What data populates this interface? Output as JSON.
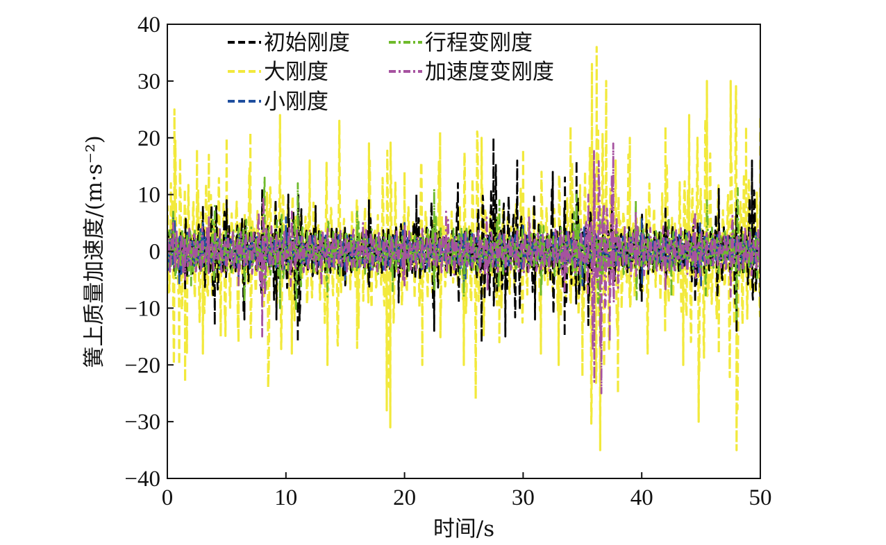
{
  "chart_data": {
    "type": "line",
    "title": "",
    "xlabel": "时间/s",
    "ylabel": "簧上质量加速度/(m·s⁻²)",
    "xlim": [
      0,
      50
    ],
    "ylim": [
      -40,
      40
    ],
    "xticks": [
      0,
      10,
      20,
      30,
      40,
      50
    ],
    "yticks": [
      -40,
      -30,
      -20,
      -10,
      0,
      10,
      20,
      30,
      40
    ],
    "grid": false,
    "legend_position": "top-left",
    "series": [
      {
        "name": "初始刚度",
        "color": "#000000",
        "dash": "dashed",
        "peaks": [
          {
            "x": 0.5,
            "y": 6
          },
          {
            "x": 1.5,
            "y": -7
          },
          {
            "x": 3.0,
            "y": 8
          },
          {
            "x": 4.0,
            "y": -13
          },
          {
            "x": 5.0,
            "y": 9
          },
          {
            "x": 6.5,
            "y": -12
          },
          {
            "x": 8.0,
            "y": 11
          },
          {
            "x": 9.2,
            "y": -12
          },
          {
            "x": 10.2,
            "y": 10
          },
          {
            "x": 11.0,
            "y": -16
          },
          {
            "x": 12.5,
            "y": 8
          },
          {
            "x": 15.0,
            "y": -6
          },
          {
            "x": 17.0,
            "y": 9
          },
          {
            "x": 19.5,
            "y": -9
          },
          {
            "x": 21.0,
            "y": 10
          },
          {
            "x": 22.5,
            "y": -14
          },
          {
            "x": 24.5,
            "y": 12
          },
          {
            "x": 26.5,
            "y": -16
          },
          {
            "x": 27.5,
            "y": 20
          },
          {
            "x": 28.5,
            "y": -15
          },
          {
            "x": 29.5,
            "y": 16
          },
          {
            "x": 31.0,
            "y": -12
          },
          {
            "x": 32.5,
            "y": 14
          },
          {
            "x": 33.5,
            "y": -15
          },
          {
            "x": 34.5,
            "y": 16
          },
          {
            "x": 35.5,
            "y": -13
          },
          {
            "x": 37.5,
            "y": 10
          },
          {
            "x": 40.0,
            "y": -9
          },
          {
            "x": 42.0,
            "y": 8
          },
          {
            "x": 44.5,
            "y": -9
          },
          {
            "x": 46.5,
            "y": 11
          },
          {
            "x": 48.0,
            "y": -14
          },
          {
            "x": 49.3,
            "y": 16
          },
          {
            "x": 50.0,
            "y": -8
          }
        ]
      },
      {
        "name": "大刚度",
        "color": "#f2e93c",
        "dash": "dashed",
        "peaks": [
          {
            "x": 0.3,
            "y": 12
          },
          {
            "x": 0.6,
            "y": 25
          },
          {
            "x": 1.0,
            "y": -20
          },
          {
            "x": 1.5,
            "y": -23
          },
          {
            "x": 2.5,
            "y": 18
          },
          {
            "x": 3.0,
            "y": -18
          },
          {
            "x": 3.5,
            "y": 17
          },
          {
            "x": 4.5,
            "y": -15
          },
          {
            "x": 5.0,
            "y": 20
          },
          {
            "x": 6.0,
            "y": -16
          },
          {
            "x": 7.0,
            "y": 21
          },
          {
            "x": 8.5,
            "y": -24
          },
          {
            "x": 9.5,
            "y": 24
          },
          {
            "x": 10.5,
            "y": -18
          },
          {
            "x": 12.0,
            "y": 16
          },
          {
            "x": 13.5,
            "y": -20
          },
          {
            "x": 14.5,
            "y": 23
          },
          {
            "x": 16.0,
            "y": -17
          },
          {
            "x": 17.0,
            "y": 19
          },
          {
            "x": 18.5,
            "y": -28
          },
          {
            "x": 18.8,
            "y": -31
          },
          {
            "x": 20.0,
            "y": 14
          },
          {
            "x": 21.5,
            "y": -20
          },
          {
            "x": 23.0,
            "y": 21
          },
          {
            "x": 25.0,
            "y": -20
          },
          {
            "x": 26.0,
            "y": -26
          },
          {
            "x": 26.5,
            "y": 20
          },
          {
            "x": 28.0,
            "y": -16
          },
          {
            "x": 30.0,
            "y": 18
          },
          {
            "x": 31.5,
            "y": -18
          },
          {
            "x": 33.0,
            "y": -20
          },
          {
            "x": 34.0,
            "y": 22
          },
          {
            "x": 35.0,
            "y": -22
          },
          {
            "x": 35.8,
            "y": 33
          },
          {
            "x": 36.2,
            "y": 36
          },
          {
            "x": 36.5,
            "y": -35
          },
          {
            "x": 37.0,
            "y": 30
          },
          {
            "x": 38.0,
            "y": -25
          },
          {
            "x": 39.0,
            "y": 20
          },
          {
            "x": 40.5,
            "y": -18
          },
          {
            "x": 42.0,
            "y": 22
          },
          {
            "x": 43.5,
            "y": -20
          },
          {
            "x": 44.0,
            "y": 24
          },
          {
            "x": 44.8,
            "y": -30
          },
          {
            "x": 45.5,
            "y": 30
          },
          {
            "x": 46.5,
            "y": -18
          },
          {
            "x": 47.5,
            "y": 30
          },
          {
            "x": 48.0,
            "y": -35
          },
          {
            "x": 48.8,
            "y": 22
          },
          {
            "x": 50.0,
            "y": 24
          }
        ]
      },
      {
        "name": "小刚度",
        "color": "#1f4e9e",
        "dash": "dashed",
        "peaks": [
          {
            "x": 0.5,
            "y": 7
          },
          {
            "x": 1.0,
            "y": -6
          },
          {
            "x": 3.0,
            "y": 5
          },
          {
            "x": 6.0,
            "y": -5
          },
          {
            "x": 10.0,
            "y": 6
          },
          {
            "x": 15.0,
            "y": -5
          },
          {
            "x": 20.0,
            "y": 5
          },
          {
            "x": 25.0,
            "y": -6
          },
          {
            "x": 30.0,
            "y": 5
          },
          {
            "x": 35.0,
            "y": -6
          },
          {
            "x": 40.0,
            "y": 6
          },
          {
            "x": 45.0,
            "y": -6
          },
          {
            "x": 50.0,
            "y": 5
          }
        ]
      },
      {
        "name": "行程变刚度",
        "color": "#6fba2c",
        "dash": "dashdot",
        "peaks": [
          {
            "x": 0.5,
            "y": 7
          },
          {
            "x": 2.0,
            "y": -6
          },
          {
            "x": 4.0,
            "y": 8
          },
          {
            "x": 6.5,
            "y": -9
          },
          {
            "x": 8.2,
            "y": 13
          },
          {
            "x": 9.5,
            "y": -10
          },
          {
            "x": 11.0,
            "y": 12
          },
          {
            "x": 13.5,
            "y": -8
          },
          {
            "x": 16.0,
            "y": 7
          },
          {
            "x": 19.0,
            "y": -7
          },
          {
            "x": 22.5,
            "y": 11
          },
          {
            "x": 25.0,
            "y": -8
          },
          {
            "x": 28.0,
            "y": 9
          },
          {
            "x": 31.5,
            "y": -8
          },
          {
            "x": 34.5,
            "y": 10
          },
          {
            "x": 36.5,
            "y": -14
          },
          {
            "x": 39.5,
            "y": 9
          },
          {
            "x": 42.5,
            "y": -8
          },
          {
            "x": 45.5,
            "y": 9
          },
          {
            "x": 48.0,
            "y": -12
          },
          {
            "x": 50.0,
            "y": 8
          }
        ]
      },
      {
        "name": "加速度变刚度",
        "color": "#a652a0",
        "dash": "dashdot",
        "peaks": [
          {
            "x": 0.5,
            "y": 5
          },
          {
            "x": 1.5,
            "y": -5
          },
          {
            "x": 3.5,
            "y": 6
          },
          {
            "x": 6.0,
            "y": -6
          },
          {
            "x": 8.0,
            "y": -15
          },
          {
            "x": 10.5,
            "y": 7
          },
          {
            "x": 13.0,
            "y": -6
          },
          {
            "x": 16.5,
            "y": 5
          },
          {
            "x": 20.0,
            "y": -6
          },
          {
            "x": 23.5,
            "y": 7
          },
          {
            "x": 27.0,
            "y": -7
          },
          {
            "x": 30.5,
            "y": 6
          },
          {
            "x": 33.5,
            "y": -7
          },
          {
            "x": 35.5,
            "y": 10
          },
          {
            "x": 36.0,
            "y": -23
          },
          {
            "x": 36.6,
            "y": -25
          },
          {
            "x": 37.3,
            "y": -16
          },
          {
            "x": 37.6,
            "y": 19
          },
          {
            "x": 39.5,
            "y": 7
          },
          {
            "x": 42.0,
            "y": -7
          },
          {
            "x": 44.5,
            "y": 7
          },
          {
            "x": 47.5,
            "y": -8
          },
          {
            "x": 50.0,
            "y": 6
          }
        ]
      }
    ]
  }
}
